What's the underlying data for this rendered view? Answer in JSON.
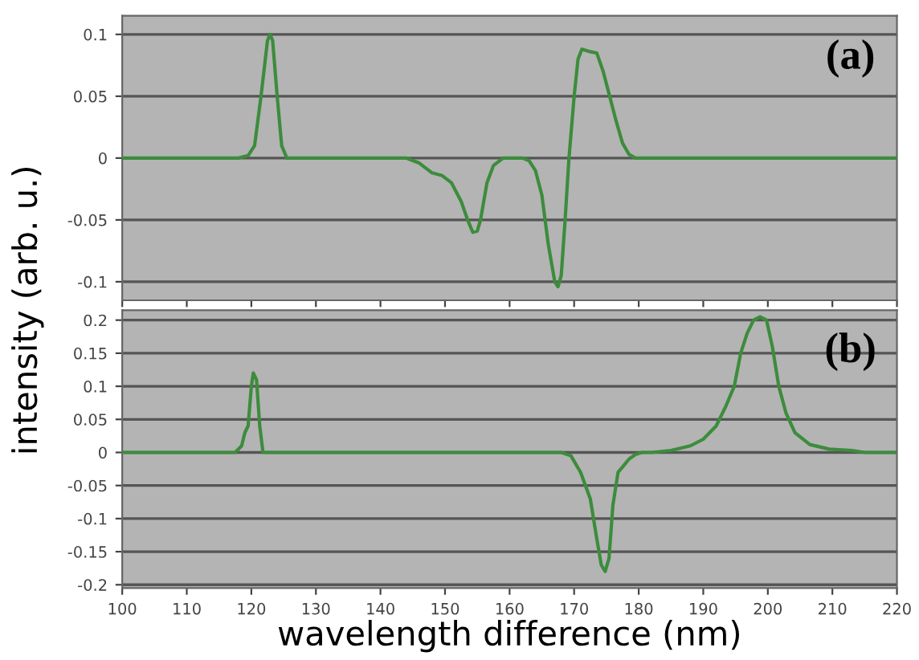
{
  "chart_data": [
    {
      "type": "line",
      "ylabel": "intensity (arb. u.)",
      "annotations": [
        "(a)"
      ],
      "xlim": [
        100,
        220
      ],
      "ylim": [
        -0.115,
        0.115
      ],
      "yticks": [
        -0.1,
        -0.05,
        0,
        0.05,
        0.1
      ],
      "xticks": [
        100,
        110,
        120,
        130,
        140,
        150,
        160,
        170,
        180,
        190,
        200,
        210,
        220
      ],
      "tick_labels": "y",
      "grid": "y",
      "marker": "none",
      "line_style": "solid",
      "series": [
        {
          "color": "#3c8c3c",
          "x": [
            100,
            118,
            119.5,
            120.5,
            121.5,
            122.5,
            122.9,
            123.3,
            124,
            124.7,
            125.5,
            144,
            146,
            148,
            149.5,
            151,
            152.5,
            153.5,
            154.3,
            155,
            155.5,
            156.5,
            157.5,
            159,
            162,
            163,
            164,
            165,
            166,
            167,
            167.5,
            168,
            168.6,
            169.2,
            170,
            170.6,
            171.2,
            172.5,
            173.5,
            174.5,
            175.5,
            176.5,
            177.5,
            178.5,
            179.5,
            220
          ],
          "values": [
            0,
            0,
            0.002,
            0.01,
            0.05,
            0.095,
            0.1,
            0.095,
            0.05,
            0.01,
            0,
            0,
            -0.004,
            -0.012,
            -0.014,
            -0.02,
            -0.035,
            -0.05,
            -0.06,
            -0.059,
            -0.05,
            -0.02,
            -0.006,
            0,
            0,
            -0.002,
            -0.01,
            -0.03,
            -0.07,
            -0.1,
            -0.104,
            -0.095,
            -0.05,
            0,
            0.05,
            0.08,
            0.088,
            0.086,
            0.085,
            0.07,
            0.05,
            0.03,
            0.012,
            0.003,
            0,
            0
          ]
        }
      ]
    },
    {
      "type": "line",
      "xlabel": "wavelength difference (nm)",
      "annotations": [
        "(b)"
      ],
      "xlim": [
        100,
        220
      ],
      "ylim": [
        -0.205,
        0.215
      ],
      "yticks": [
        -0.2,
        -0.15,
        -0.1,
        -0.05,
        0,
        0.05,
        0.1,
        0.15,
        0.2
      ],
      "xticks": [
        100,
        110,
        120,
        130,
        140,
        150,
        160,
        170,
        180,
        190,
        200,
        210,
        220
      ],
      "grid": "y",
      "marker": "none",
      "line_style": "solid",
      "series": [
        {
          "color": "#3c8c3c",
          "x": [
            100,
            117.5,
            118.5,
            119,
            119.5,
            120,
            120.3,
            120.8,
            121.3,
            121.8,
            168,
            169.5,
            171,
            172.5,
            173.5,
            174.2,
            174.8,
            175.4,
            176,
            176.8,
            177.5,
            178.5,
            179.5,
            180.5,
            182,
            185,
            188,
            190,
            192,
            193.5,
            194.8,
            195.8,
            196.8,
            197.8,
            198.8,
            199.8,
            200.7,
            201.7,
            202.8,
            204.2,
            206.5,
            209.5,
            213,
            215,
            220
          ],
          "values": [
            0,
            0,
            0.01,
            0.03,
            0.04,
            0.1,
            0.12,
            0.11,
            0.04,
            0,
            0,
            -0.005,
            -0.03,
            -0.07,
            -0.13,
            -0.17,
            -0.18,
            -0.16,
            -0.08,
            -0.03,
            -0.022,
            -0.01,
            -0.003,
            0,
            0,
            0.003,
            0.01,
            0.02,
            0.04,
            0.07,
            0.1,
            0.15,
            0.18,
            0.2,
            0.205,
            0.2,
            0.16,
            0.1,
            0.06,
            0.03,
            0.012,
            0.005,
            0.003,
            0,
            0
          ]
        }
      ]
    }
  ]
}
